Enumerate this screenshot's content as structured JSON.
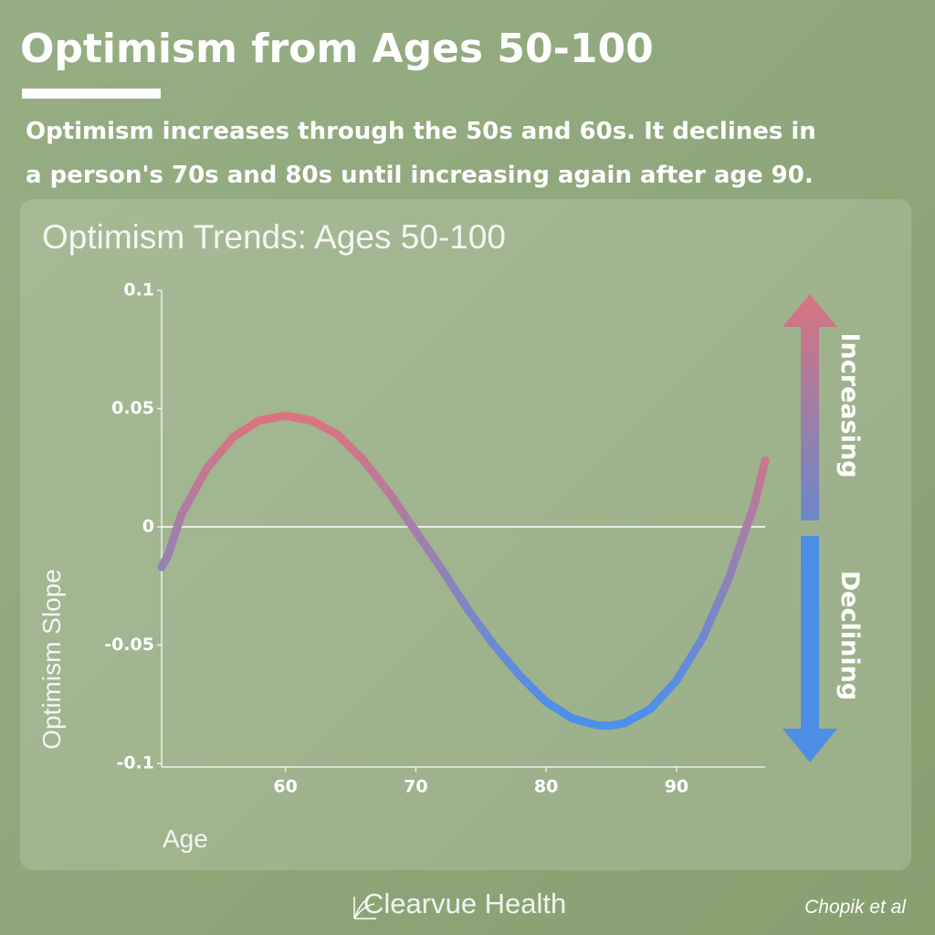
{
  "header": {
    "title": "Optimism from Ages 50-100",
    "subtitle_lines": [
      "Optimism increases through the 50s and 60s. It declines in",
      "a person's 70s and 80s until increasing again after age 90."
    ]
  },
  "chart_data": {
    "type": "line",
    "title": "Optimism Trends: Ages 50-100",
    "x_label": "Age",
    "y_label": "Optimism Slope",
    "x": [
      50.5,
      51,
      52,
      54,
      56,
      58,
      60,
      62,
      64,
      66,
      68,
      70,
      72,
      74,
      76,
      78,
      80,
      82,
      84,
      85,
      86,
      88,
      90,
      92,
      94,
      96,
      96.8
    ],
    "series": [
      {
        "name": "Optimism Slope",
        "gradient": [
          "#e0727c",
          "#4d90ea"
        ],
        "values": [
          -0.017,
          -0.012,
          0.005,
          0.025,
          0.038,
          0.045,
          0.047,
          0.045,
          0.039,
          0.028,
          0.014,
          -0.002,
          -0.018,
          -0.035,
          -0.05,
          -0.063,
          -0.074,
          -0.081,
          -0.084,
          -0.084,
          -0.083,
          -0.077,
          -0.065,
          -0.047,
          -0.022,
          0.01,
          0.028
        ]
      }
    ],
    "xlim": [
      50.5,
      96.8
    ],
    "xticks": [
      60,
      70,
      80,
      90
    ],
    "ylim": [
      -0.1,
      0.1
    ],
    "yticks": [
      0.1,
      0.05,
      0,
      -0.05,
      -0.1
    ],
    "zero_line": true,
    "arrows": {
      "up": "Increasing",
      "down": "Declining"
    }
  },
  "footer": {
    "brand": "Clearvue Health",
    "source": "Chopik et al"
  }
}
